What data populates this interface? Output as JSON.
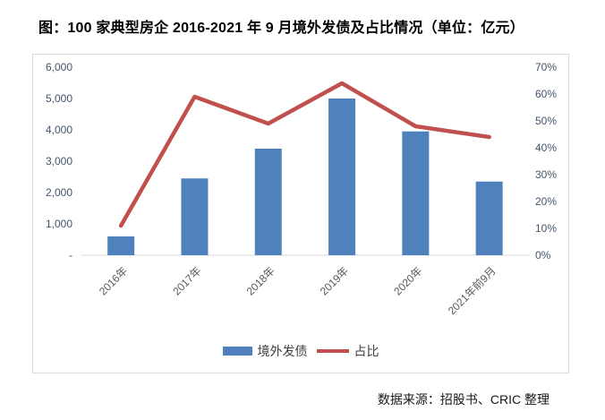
{
  "title": "图：100 家典型房企 2016-2021 年 9 月境外发债及占比情况（单位：亿元）",
  "source": "数据来源：招股书、CRIC 整理",
  "legend": {
    "bar_label": "境外发债",
    "line_label": "占比"
  },
  "colors": {
    "bar": "#4F81BD",
    "line": "#C0504D",
    "frame": "#D9D9D9",
    "axis_line": "#D9D9D9",
    "value_axis_text": "#44546A",
    "category_text": "#595959"
  },
  "chart_data": {
    "type": "bar",
    "subtype": "combo-bar-line-dual-axis",
    "title": "图：100 家典型房企 2016-2021 年 9 月境外发债及占比情况（单位：亿元）",
    "categories": [
      "2016年",
      "2017年",
      "2018年",
      "2019年",
      "2020年",
      "2021年前9月"
    ],
    "series": [
      {
        "name": "境外发债",
        "type": "bar",
        "axis": "left",
        "unit": "亿元",
        "values": [
          600,
          2450,
          3400,
          5000,
          3950,
          2350
        ]
      },
      {
        "name": "占比",
        "type": "line",
        "axis": "right",
        "unit": "%",
        "values": [
          11,
          59,
          49,
          64,
          48,
          44
        ]
      }
    ],
    "left_axis": {
      "min": 0,
      "max": 6000,
      "step": 1000,
      "tick_labels": [
        "-",
        "1,000",
        "2,000",
        "3,000",
        "4,000",
        "5,000",
        "6,000"
      ]
    },
    "right_axis": {
      "min": 0,
      "max": 70,
      "step": 10,
      "tick_labels": [
        "0%",
        "10%",
        "20%",
        "30%",
        "40%",
        "50%",
        "60%",
        "70%"
      ]
    },
    "grid": false,
    "legend_position": "bottom"
  }
}
